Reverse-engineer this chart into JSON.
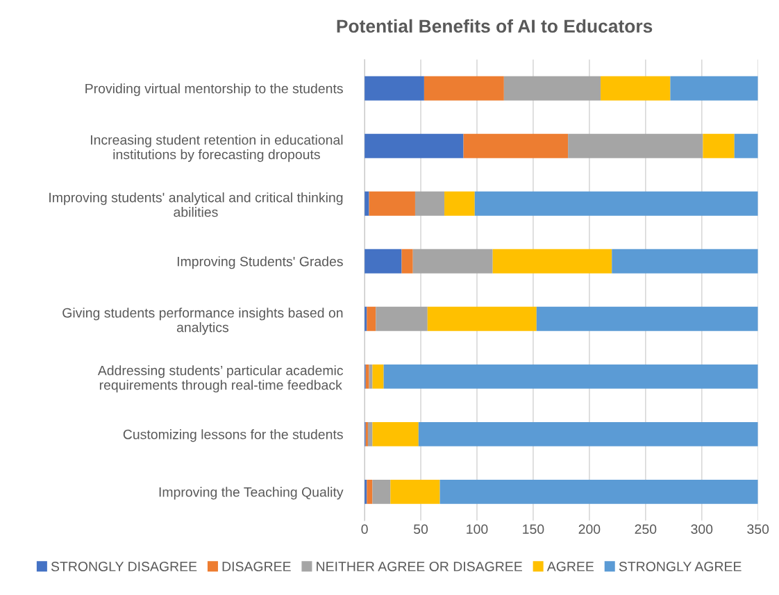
{
  "chart_data": {
    "type": "bar",
    "orientation": "horizontal",
    "stacked": true,
    "title": "Potential Benefits of AI to Educators",
    "categories": [
      "Providing virtual mentorship to the students",
      "Increasing student retention in educational institutions by forecasting dropouts",
      "Improving students' analytical and critical thinking abilities",
      "Improving Students' Grades",
      "Giving students performance insights based on analytics",
      "Addressing students’ particular academic requirements through real-time feedback",
      "Customizing lessons for the students",
      "Improving the Teaching Quality"
    ],
    "series": [
      {
        "name": "STRONGLY DISAGREE",
        "color": "#4472c4",
        "values": [
          53,
          88,
          4,
          33,
          2,
          1,
          1,
          2
        ]
      },
      {
        "name": "DISAGREE",
        "color": "#ed7d31",
        "values": [
          71,
          93,
          41,
          10,
          8,
          3,
          2,
          5
        ]
      },
      {
        "name": "NEITHER AGREE OR DISAGREE",
        "color": "#a5a5a5",
        "values": [
          86,
          120,
          26,
          71,
          46,
          3,
          4,
          16
        ]
      },
      {
        "name": "AGREE",
        "color": "#ffc000",
        "values": [
          62,
          28,
          27,
          106,
          97,
          10,
          41,
          44
        ]
      },
      {
        "name": "STRONGLY AGREE",
        "color": "#5b9bd5",
        "values": [
          78,
          21,
          252,
          130,
          197,
          333,
          302,
          283
        ]
      }
    ],
    "xlim": [
      0,
      350
    ],
    "xticks": [
      0,
      50,
      100,
      150,
      200,
      250,
      300,
      350
    ],
    "grid": "x",
    "legend": "bottom"
  }
}
